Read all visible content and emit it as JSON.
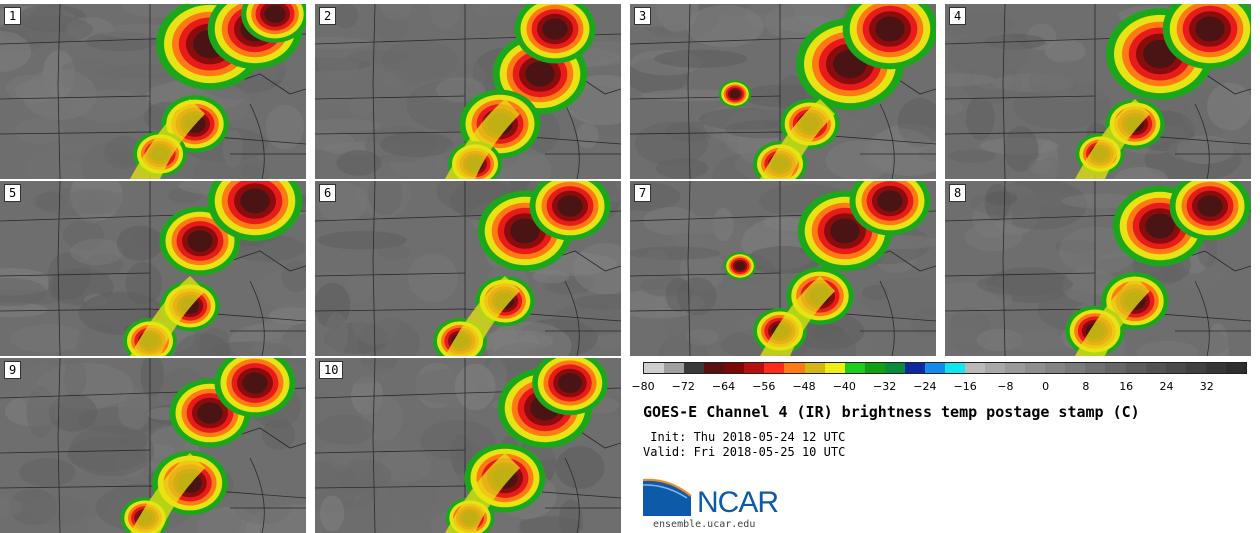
{
  "panels": [
    "1",
    "2",
    "3",
    "4",
    "5",
    "6",
    "7",
    "8",
    "9",
    "10"
  ],
  "colorbar": {
    "colors": [
      "#cfcfcf",
      "#a0a0a0",
      "#3a3a3a",
      "#5a1010",
      "#7a0808",
      "#b81010",
      "#ff2a1a",
      "#ff7a14",
      "#d6b414",
      "#f0ee14",
      "#1ccc1c",
      "#10a010",
      "#0d8a3a",
      "#0a2aa0",
      "#148aee",
      "#10e6f0",
      "#b9b9b9",
      "#a8a8a8",
      "#9a9a9a",
      "#8e8e8e",
      "#848484",
      "#7a7a7a",
      "#707070",
      "#666666",
      "#5c5c5c",
      "#525252",
      "#494949",
      "#404040",
      "#373737",
      "#2e2e2e"
    ],
    "ticks": [
      "−80",
      "−72",
      "−64",
      "−56",
      "−48",
      "−40",
      "−32",
      "−24",
      "−16",
      "−8",
      "0",
      "8",
      "16",
      "24",
      "32"
    ]
  },
  "title": "GOES-E Channel 4 (IR) brightness temp postage stamp (C)",
  "init": " Init: Thu 2018-05-24 12 UTC",
  "valid": "Valid: Fri 2018-05-25 10 UTC",
  "logo_text": "NCAR",
  "url": "ensemble.ucar.edu"
}
